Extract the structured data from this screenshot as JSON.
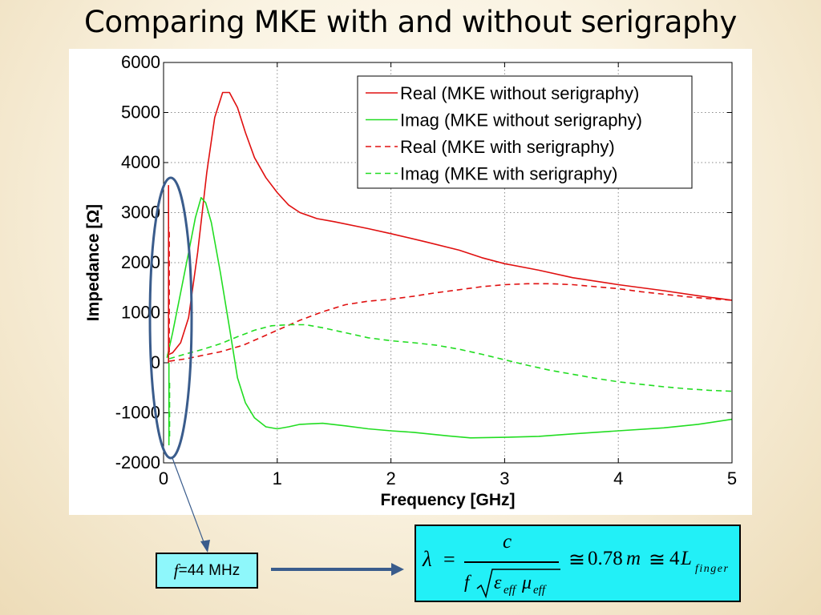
{
  "slide": {
    "title": "Comparing MKE with and without serigraphy"
  },
  "chart_data": {
    "type": "line",
    "xlabel": "Frequency [GHz]",
    "ylabel": "Impedance [Ω]",
    "xlim": [
      0,
      5
    ],
    "ylim": [
      -2000,
      6000
    ],
    "xticks": [
      0,
      1,
      2,
      3,
      4,
      5
    ],
    "yticks": [
      -2000,
      -1000,
      0,
      1000,
      2000,
      3000,
      4000,
      5000,
      6000
    ],
    "grid": true,
    "legend_position": "top-right",
    "series": [
      {
        "name": "Real (MKE without serigraphy)",
        "color": "#e01010",
        "dash": "solid",
        "points": [
          [
            0.03,
            150
          ],
          [
            0.08,
            200
          ],
          [
            0.15,
            400
          ],
          [
            0.22,
            900
          ],
          [
            0.3,
            2200
          ],
          [
            0.38,
            3800
          ],
          [
            0.45,
            4900
          ],
          [
            0.52,
            5400
          ],
          [
            0.58,
            5400
          ],
          [
            0.65,
            5100
          ],
          [
            0.72,
            4600
          ],
          [
            0.8,
            4100
          ],
          [
            0.9,
            3700
          ],
          [
            1.0,
            3400
          ],
          [
            1.1,
            3150
          ],
          [
            1.2,
            3000
          ],
          [
            1.35,
            2880
          ],
          [
            1.5,
            2820
          ],
          [
            1.8,
            2680
          ],
          [
            2.0,
            2580
          ],
          [
            2.3,
            2420
          ],
          [
            2.6,
            2250
          ],
          [
            2.8,
            2100
          ],
          [
            3.0,
            1980
          ],
          [
            3.3,
            1850
          ],
          [
            3.6,
            1700
          ],
          [
            4.0,
            1560
          ],
          [
            4.4,
            1440
          ],
          [
            4.7,
            1340
          ],
          [
            5.0,
            1250
          ]
        ]
      },
      {
        "name": "Imag (MKE without serigraphy)",
        "color": "#22dd22",
        "dash": "solid",
        "points": [
          [
            0.03,
            100
          ],
          [
            0.08,
            600
          ],
          [
            0.15,
            1400
          ],
          [
            0.22,
            2200
          ],
          [
            0.28,
            2900
          ],
          [
            0.33,
            3300
          ],
          [
            0.37,
            3200
          ],
          [
            0.42,
            2800
          ],
          [
            0.5,
            1800
          ],
          [
            0.58,
            700
          ],
          [
            0.65,
            -300
          ],
          [
            0.72,
            -800
          ],
          [
            0.8,
            -1100
          ],
          [
            0.9,
            -1280
          ],
          [
            1.0,
            -1320
          ],
          [
            1.1,
            -1280
          ],
          [
            1.2,
            -1230
          ],
          [
            1.4,
            -1210
          ],
          [
            1.6,
            -1260
          ],
          [
            1.8,
            -1320
          ],
          [
            2.0,
            -1360
          ],
          [
            2.2,
            -1390
          ],
          [
            2.5,
            -1460
          ],
          [
            2.7,
            -1500
          ],
          [
            3.0,
            -1490
          ],
          [
            3.3,
            -1470
          ],
          [
            3.6,
            -1420
          ],
          [
            4.0,
            -1360
          ],
          [
            4.4,
            -1300
          ],
          [
            4.7,
            -1230
          ],
          [
            5.0,
            -1130
          ]
        ]
      },
      {
        "name": "Real (MKE with serigraphy)",
        "color": "#e01010",
        "dash": "dashed",
        "points": [
          [
            0.05,
            30
          ],
          [
            0.2,
            80
          ],
          [
            0.35,
            150
          ],
          [
            0.5,
            220
          ],
          [
            0.7,
            350
          ],
          [
            0.85,
            500
          ],
          [
            1.0,
            650
          ],
          [
            1.2,
            850
          ],
          [
            1.4,
            1020
          ],
          [
            1.6,
            1160
          ],
          [
            1.8,
            1230
          ],
          [
            2.0,
            1270
          ],
          [
            2.2,
            1330
          ],
          [
            2.4,
            1400
          ],
          [
            2.6,
            1460
          ],
          [
            2.8,
            1520
          ],
          [
            3.0,
            1560
          ],
          [
            3.2,
            1580
          ],
          [
            3.4,
            1580
          ],
          [
            3.6,
            1560
          ],
          [
            3.8,
            1520
          ],
          [
            4.0,
            1480
          ],
          [
            4.2,
            1420
          ],
          [
            4.4,
            1370
          ],
          [
            4.6,
            1320
          ],
          [
            4.8,
            1280
          ],
          [
            5.0,
            1250
          ]
        ]
      },
      {
        "name": "Imag (MKE with serigraphy)",
        "color": "#22dd22",
        "dash": "dashed",
        "points": [
          [
            0.05,
            80
          ],
          [
            0.2,
            180
          ],
          [
            0.35,
            270
          ],
          [
            0.5,
            380
          ],
          [
            0.65,
            520
          ],
          [
            0.8,
            650
          ],
          [
            0.95,
            740
          ],
          [
            1.1,
            760
          ],
          [
            1.25,
            760
          ],
          [
            1.4,
            700
          ],
          [
            1.6,
            600
          ],
          [
            1.8,
            500
          ],
          [
            2.0,
            440
          ],
          [
            2.2,
            400
          ],
          [
            2.4,
            350
          ],
          [
            2.6,
            270
          ],
          [
            2.8,
            170
          ],
          [
            3.0,
            60
          ],
          [
            3.2,
            -50
          ],
          [
            3.4,
            -150
          ],
          [
            3.6,
            -230
          ],
          [
            3.8,
            -310
          ],
          [
            4.0,
            -380
          ],
          [
            4.2,
            -430
          ],
          [
            4.4,
            -480
          ],
          [
            4.6,
            -520
          ],
          [
            4.8,
            -550
          ],
          [
            5.0,
            -570
          ]
        ]
      }
    ],
    "low_freq_spikes": [
      {
        "x": 0.044,
        "from": 0,
        "to": 3550,
        "color": "#e01010",
        "dash": "solid"
      },
      {
        "x": 0.05,
        "from": 200,
        "to": 2700,
        "color": "#e01010",
        "dash": "dashed"
      },
      {
        "x": 0.047,
        "from": 0,
        "to": -1650,
        "color": "#22dd22",
        "dash": "solid"
      },
      {
        "x": 0.053,
        "from": -400,
        "to": -1500,
        "color": "#22dd22",
        "dash": "dashed"
      }
    ]
  },
  "annotations": {
    "ellipse_color": "#3a5c8c",
    "arrow_color": "#3a5c8c",
    "freq_label_symbol": "f",
    "freq_label_text": "=44 MHz",
    "formula": {
      "lambda": "λ",
      "equals": "=",
      "numerator": "c",
      "f": "f",
      "epsilon": "ε",
      "eff1": "eff",
      "mu": "μ",
      "eff2": "eff",
      "approx1": "≅",
      "value": "0.78",
      "unit": "m",
      "approx2": "≅",
      "coef": "4",
      "L": "L",
      "finger": "finger"
    }
  }
}
